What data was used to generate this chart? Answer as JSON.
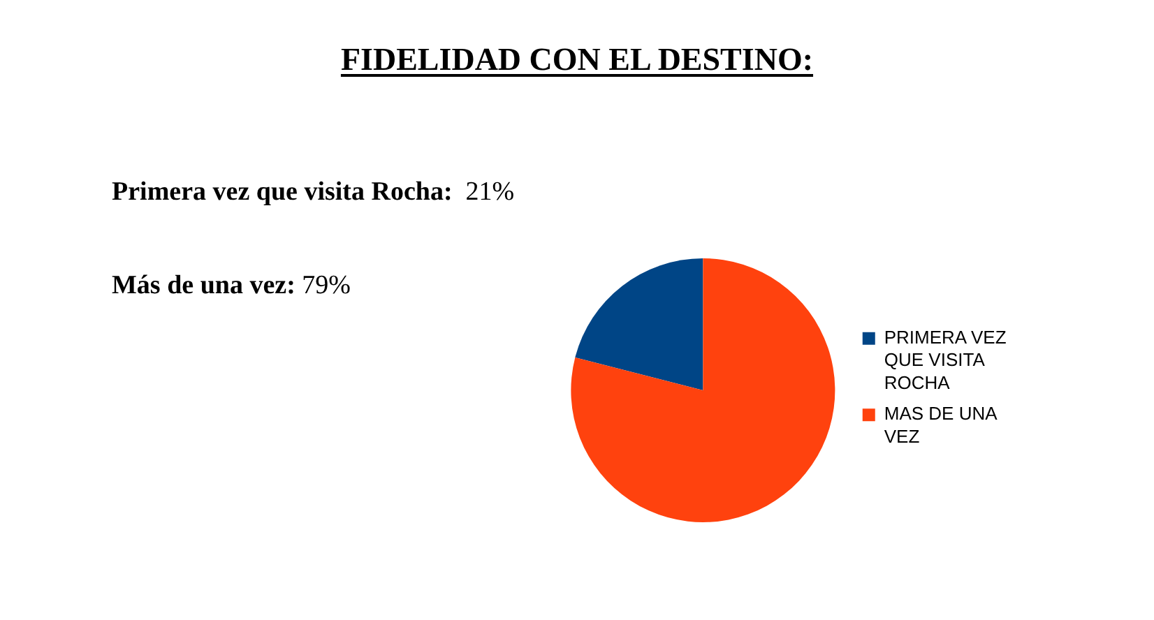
{
  "chart_data": {
    "type": "pie",
    "title": "FIDELIDAD CON EL DESTINO:",
    "categories": [
      "PRIMERA VEZ QUE VISITA ROCHA",
      "MAS DE UNA VEZ"
    ],
    "values": [
      21,
      79
    ],
    "colors": [
      "#004586",
      "#ff420e"
    ],
    "legend": "right",
    "annotations": [
      "Primera vez que visita Rocha:  21%",
      "Más de una vez: 79%"
    ]
  }
}
